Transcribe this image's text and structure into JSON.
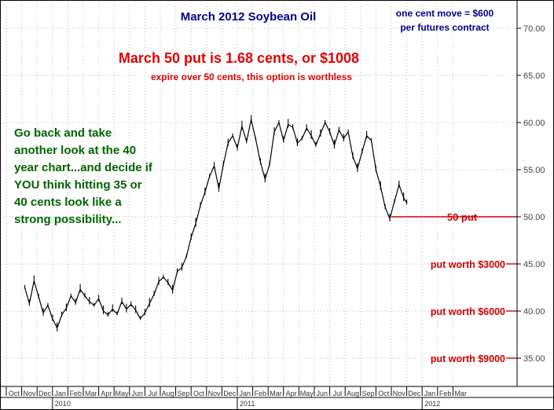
{
  "chart_data": {
    "type": "line",
    "title": "March 2012 Soybean Oil",
    "note_lines": [
      "one cent move = $600",
      "per futures contract"
    ],
    "headline": "March 50 put is 1.68 cents, or $1008",
    "subheadline": "expire over 50 cents, this option is worthless",
    "commentary": [
      "Go back and take",
      "another look at the 40",
      "year chart...and decide if",
      "YOU think hitting 35 or",
      "40 cents look like a",
      "strong possibility..."
    ],
    "ylim": [
      32,
      73
    ],
    "y_ticks": [
      35,
      40,
      45,
      50,
      55,
      60,
      65,
      70
    ],
    "y_tick_labels": [
      "35.00",
      "40.00",
      "45.00",
      "50.00",
      "55.00",
      "60.00",
      "65.00",
      "70.00"
    ],
    "x_ticks": [
      {
        "label": "Oct",
        "m": 0
      },
      {
        "label": "Nov",
        "m": 1
      },
      {
        "label": "Dec",
        "m": 2
      },
      {
        "label": "Jan",
        "m": 3
      },
      {
        "label": "Feb",
        "m": 4
      },
      {
        "label": "Mar",
        "m": 5
      },
      {
        "label": "Apr",
        "m": 6
      },
      {
        "label": "May",
        "m": 7
      },
      {
        "label": "Jun",
        "m": 8
      },
      {
        "label": "Jul",
        "m": 9
      },
      {
        "label": "Aug",
        "m": 10
      },
      {
        "label": "Sep",
        "m": 11
      },
      {
        "label": "Oct",
        "m": 12
      },
      {
        "label": "Nov",
        "m": 13
      },
      {
        "label": "Dec",
        "m": 14
      },
      {
        "label": "Jan",
        "m": 15
      },
      {
        "label": "Feb",
        "m": 16
      },
      {
        "label": "Mar",
        "m": 17
      },
      {
        "label": "Apr",
        "m": 18
      },
      {
        "label": "May",
        "m": 19
      },
      {
        "label": "Jun",
        "m": 20
      },
      {
        "label": "Jul",
        "m": 21
      },
      {
        "label": "Aug",
        "m": 22
      },
      {
        "label": "Sep",
        "m": 23
      },
      {
        "label": "Oct",
        "m": 24
      },
      {
        "label": "Nov",
        "m": 25
      },
      {
        "label": "Dec",
        "m": 26
      },
      {
        "label": "Jan",
        "m": 27
      },
      {
        "label": "Feb",
        "m": 28
      },
      {
        "label": "Mar",
        "m": 29
      }
    ],
    "year_labels": [
      {
        "label": "2010",
        "m": 3
      },
      {
        "label": "2011",
        "m": 15
      },
      {
        "label": "2012",
        "m": 27
      }
    ],
    "series": [
      {
        "points": [
          [
            1.2,
            42.5
          ],
          [
            1.5,
            40.8
          ],
          [
            1.8,
            43.2
          ],
          [
            2.1,
            41.5
          ],
          [
            2.4,
            39.8
          ],
          [
            2.7,
            40.6
          ],
          [
            3.0,
            39.2
          ],
          [
            3.3,
            38.2
          ],
          [
            3.6,
            39.6
          ],
          [
            3.9,
            40.3
          ],
          [
            4.2,
            41.6
          ],
          [
            4.5,
            40.9
          ],
          [
            4.8,
            42.3
          ],
          [
            5.1,
            41.6
          ],
          [
            5.4,
            41.0
          ],
          [
            5.7,
            40.6
          ],
          [
            6.0,
            41.3
          ],
          [
            6.3,
            40.0
          ],
          [
            6.6,
            39.6
          ],
          [
            6.9,
            40.2
          ],
          [
            7.2,
            39.7
          ],
          [
            7.5,
            41.0
          ],
          [
            7.8,
            40.2
          ],
          [
            8.1,
            40.7
          ],
          [
            8.4,
            40.1
          ],
          [
            8.7,
            39.2
          ],
          [
            9.0,
            39.8
          ],
          [
            9.3,
            40.8
          ],
          [
            9.6,
            41.8
          ],
          [
            9.9,
            43.1
          ],
          [
            10.2,
            43.6
          ],
          [
            10.5,
            43.0
          ],
          [
            10.8,
            42.2
          ],
          [
            11.1,
            44.2
          ],
          [
            11.4,
            44.6
          ],
          [
            11.7,
            45.8
          ],
          [
            12.0,
            47.8
          ],
          [
            12.3,
            49.3
          ],
          [
            12.6,
            51.2
          ],
          [
            12.9,
            52.6
          ],
          [
            13.2,
            54.3
          ],
          [
            13.5,
            55.4
          ],
          [
            13.8,
            53.0
          ],
          [
            14.1,
            55.6
          ],
          [
            14.4,
            57.8
          ],
          [
            14.7,
            58.6
          ],
          [
            15.0,
            57.3
          ],
          [
            15.3,
            59.6
          ],
          [
            15.6,
            58.0
          ],
          [
            15.9,
            60.3
          ],
          [
            16.2,
            58.2
          ],
          [
            16.5,
            55.8
          ],
          [
            16.8,
            54.0
          ],
          [
            17.1,
            55.6
          ],
          [
            17.4,
            59.0
          ],
          [
            17.7,
            60.0
          ],
          [
            18.0,
            58.1
          ],
          [
            18.3,
            59.8
          ],
          [
            18.6,
            59.5
          ],
          [
            18.9,
            57.8
          ],
          [
            19.2,
            58.3
          ],
          [
            19.5,
            59.4
          ],
          [
            19.8,
            58.6
          ],
          [
            20.1,
            57.6
          ],
          [
            20.4,
            58.8
          ],
          [
            20.7,
            60.0
          ],
          [
            21.0,
            59.0
          ],
          [
            21.3,
            57.6
          ],
          [
            21.6,
            59.2
          ],
          [
            21.9,
            58.3
          ],
          [
            22.2,
            59.0
          ],
          [
            22.5,
            56.4
          ],
          [
            22.8,
            55.1
          ],
          [
            23.1,
            56.9
          ],
          [
            23.4,
            58.6
          ],
          [
            23.7,
            58.1
          ],
          [
            24.0,
            55.0
          ],
          [
            24.3,
            53.2
          ],
          [
            24.6,
            51.0
          ],
          [
            24.9,
            49.8
          ],
          [
            25.2,
            51.6
          ],
          [
            25.5,
            53.4
          ],
          [
            25.8,
            52.0
          ],
          [
            26.0,
            51.5
          ]
        ]
      }
    ],
    "strike_line": {
      "value": 50,
      "label": "50 put"
    },
    "put_labels": [
      {
        "label": "put worth $3000",
        "value": 45
      },
      {
        "label": "put worth $6000",
        "value": 40
      },
      {
        "label": "put worth $9000",
        "value": 35
      }
    ],
    "grid": true,
    "colors": {
      "title": "#00008b",
      "headline": "#e00000",
      "commentary": "#006400",
      "price": "#000000",
      "strike": "#d00000",
      "grid": "#b8b8b8"
    }
  }
}
